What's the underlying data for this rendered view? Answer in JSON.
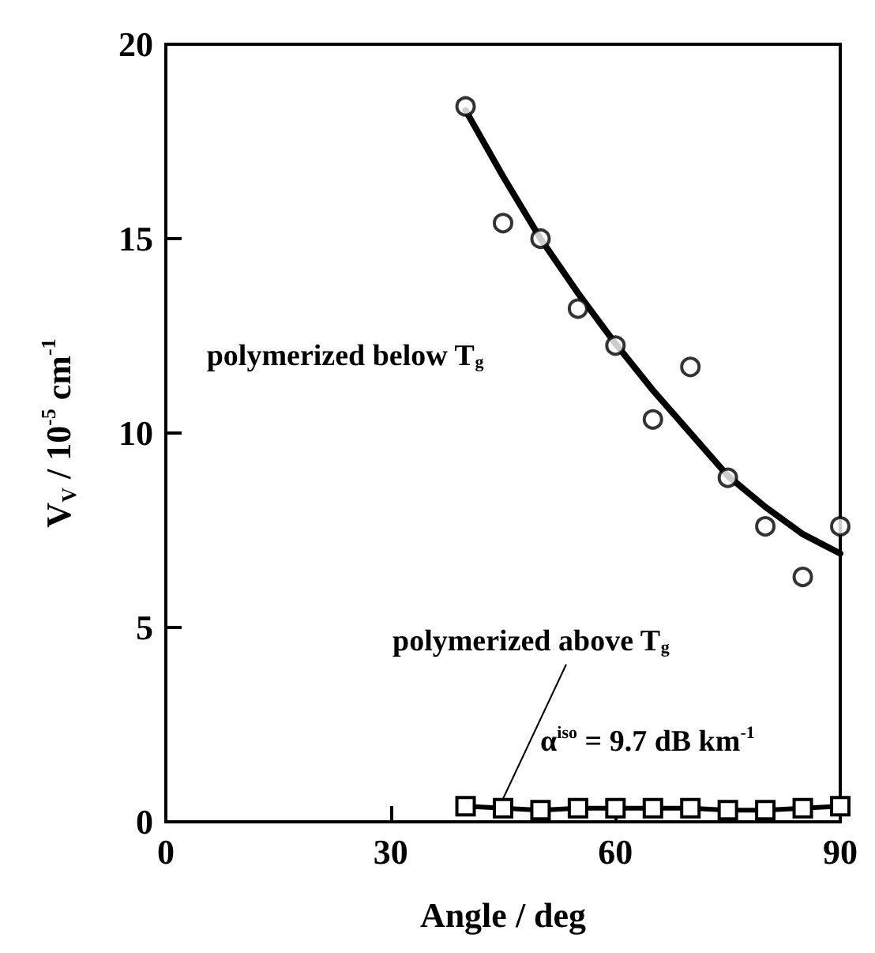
{
  "chart_data": {
    "type": "scatter",
    "xlabel": "Angle / deg",
    "ylabel": "V$_{V}$ / 10$^{-5}$ cm$^{-1}$",
    "xlim": [
      0,
      90
    ],
    "ylim": [
      0,
      20
    ],
    "xticks": [
      0,
      30,
      60,
      90
    ],
    "yticks": [
      0,
      5,
      10,
      15,
      20
    ],
    "grid": false,
    "series": [
      {
        "color": "#000000",
        "marker": "circle",
        "x": [
          40,
          45,
          50,
          55,
          60,
          65,
          70,
          75,
          80,
          85,
          90
        ],
        "values": [
          18.4,
          15.4,
          15.0,
          13.2,
          12.25,
          10.35,
          11.7,
          8.85,
          7.6,
          6.3,
          7.6
        ]
      },
      {
        "type": "line",
        "color": "#000000",
        "marker": "none",
        "line_style": "solid",
        "x": [
          40,
          45,
          50,
          55,
          60,
          65,
          70,
          75,
          80,
          85,
          90
        ],
        "values": [
          18.3,
          16.6,
          15.0,
          13.6,
          12.3,
          11.1,
          10.0,
          8.9,
          8.1,
          7.4,
          6.9
        ]
      },
      {
        "type": "line",
        "color": "#000000",
        "marker": "square",
        "line_style": "solid",
        "x": [
          40,
          45,
          50,
          55,
          60,
          65,
          70,
          75,
          80,
          85,
          90
        ],
        "values": [
          0.4,
          0.35,
          0.3,
          0.35,
          0.35,
          0.35,
          0.35,
          0.3,
          0.3,
          0.35,
          0.4
        ]
      }
    ],
    "annotations": [
      "polymerized below T$_{g}$",
      {
        "text": "polymerized above T$_{g}$",
        "x": 45,
        "y": 0.35
      },
      "α$^{iso}$ = 9.7 dB km$^{-1}$"
    ]
  }
}
